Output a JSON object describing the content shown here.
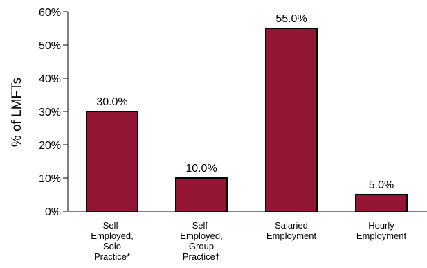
{
  "chart_data": {
    "type": "bar",
    "categories": [
      [
        "Self-",
        "Employed,",
        "Solo",
        "Practice*"
      ],
      [
        "Self-",
        "Employed,",
        "Group",
        "Practice†"
      ],
      [
        "Salaried",
        "Employment"
      ],
      [
        "Hourly",
        "Employment"
      ]
    ],
    "values": [
      30.0,
      10.0,
      55.0,
      5.0
    ],
    "data_labels": [
      "30.0%",
      "10.0%",
      "55.0%",
      "5.0%"
    ],
    "title": "",
    "xlabel": "",
    "ylabel": "% of LMFTs",
    "ylim": [
      0,
      60
    ],
    "yticks": [
      0,
      10,
      20,
      30,
      40,
      50,
      60
    ],
    "ytick_labels": [
      "0%",
      "10%",
      "20%",
      "30%",
      "40%",
      "50%",
      "60%"
    ],
    "grid": false,
    "legend": "none",
    "bar_color": "#931634"
  }
}
